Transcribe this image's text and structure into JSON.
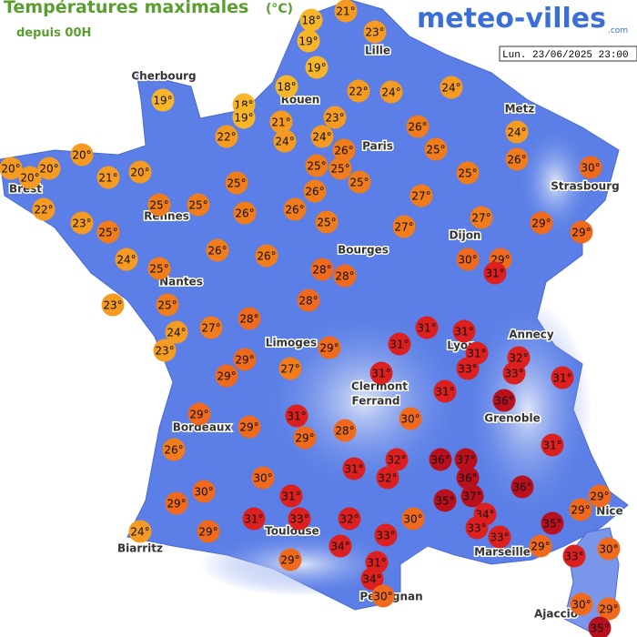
{
  "header": {
    "title": "Températures maximales",
    "unit": "(°C)",
    "subtitle": "depuis 00H",
    "logo": "meteo-villes",
    "logo_suffix": ".com",
    "date": "Lun. 23/06/2025 23:00"
  },
  "cities": [
    "Cherbourg",
    "Lille",
    "Rouen",
    "Paris",
    "Metz",
    "Brest",
    "Strasbourg",
    "Rennes",
    "Dijon",
    "Bourges",
    "Nantes",
    "Annecy",
    "Limoges",
    "Lyon",
    "Clermont",
    "Ferrand",
    "Grenoble",
    "Bordeaux",
    "Nice",
    "Toulouse",
    "Biarritz",
    "Marseille",
    "Perpignan",
    "Ajaccio"
  ],
  "markers": [
    "21°",
    "18°",
    "23°",
    "19°",
    "19°",
    "19°",
    "18°",
    "22°",
    "24°",
    "24°",
    "18°",
    "19°",
    "21°",
    "23°",
    "22°",
    "24°",
    "24°",
    "26°",
    "26°",
    "24°",
    "25°",
    "26°",
    "25°",
    "25°",
    "20°",
    "20°",
    "20°",
    "20°",
    "21°",
    "20°",
    "25°",
    "25°",
    "30°",
    "25°",
    "26°",
    "22°",
    "25°",
    "25°",
    "26°",
    "26°",
    "27°",
    "23°",
    "25°",
    "25°",
    "27°",
    "27°",
    "29°",
    "29°",
    "26°",
    "26°",
    "24°",
    "25°",
    "28°",
    "28°",
    "30°",
    "29°",
    "31°",
    "23°",
    "25°",
    "28°",
    "24°",
    "27°",
    "28°",
    "23°",
    "31°",
    "31°",
    "29°",
    "31°",
    "31°",
    "32°",
    "29°",
    "33°",
    "33°",
    "29°",
    "27°",
    "31°",
    "31°",
    "31°",
    "36°",
    "29°",
    "31°",
    "30°",
    "29°",
    "29°",
    "28°",
    "26°",
    "31°",
    "32°",
    "36°",
    "37°",
    "31°",
    "32°",
    "36°",
    "30°",
    "30°",
    "36°",
    "37°",
    "35°",
    "31°",
    "29°",
    "29°",
    "29°",
    "31°",
    "33°",
    "32°",
    "30°",
    "34°",
    "35°",
    "33°",
    "33°",
    "33°",
    "24°",
    "29°",
    "34°",
    "29°",
    "30°",
    "33°",
    "29°",
    "31°",
    "34°",
    "30°",
    "30°",
    "29°",
    "35°"
  ]
}
